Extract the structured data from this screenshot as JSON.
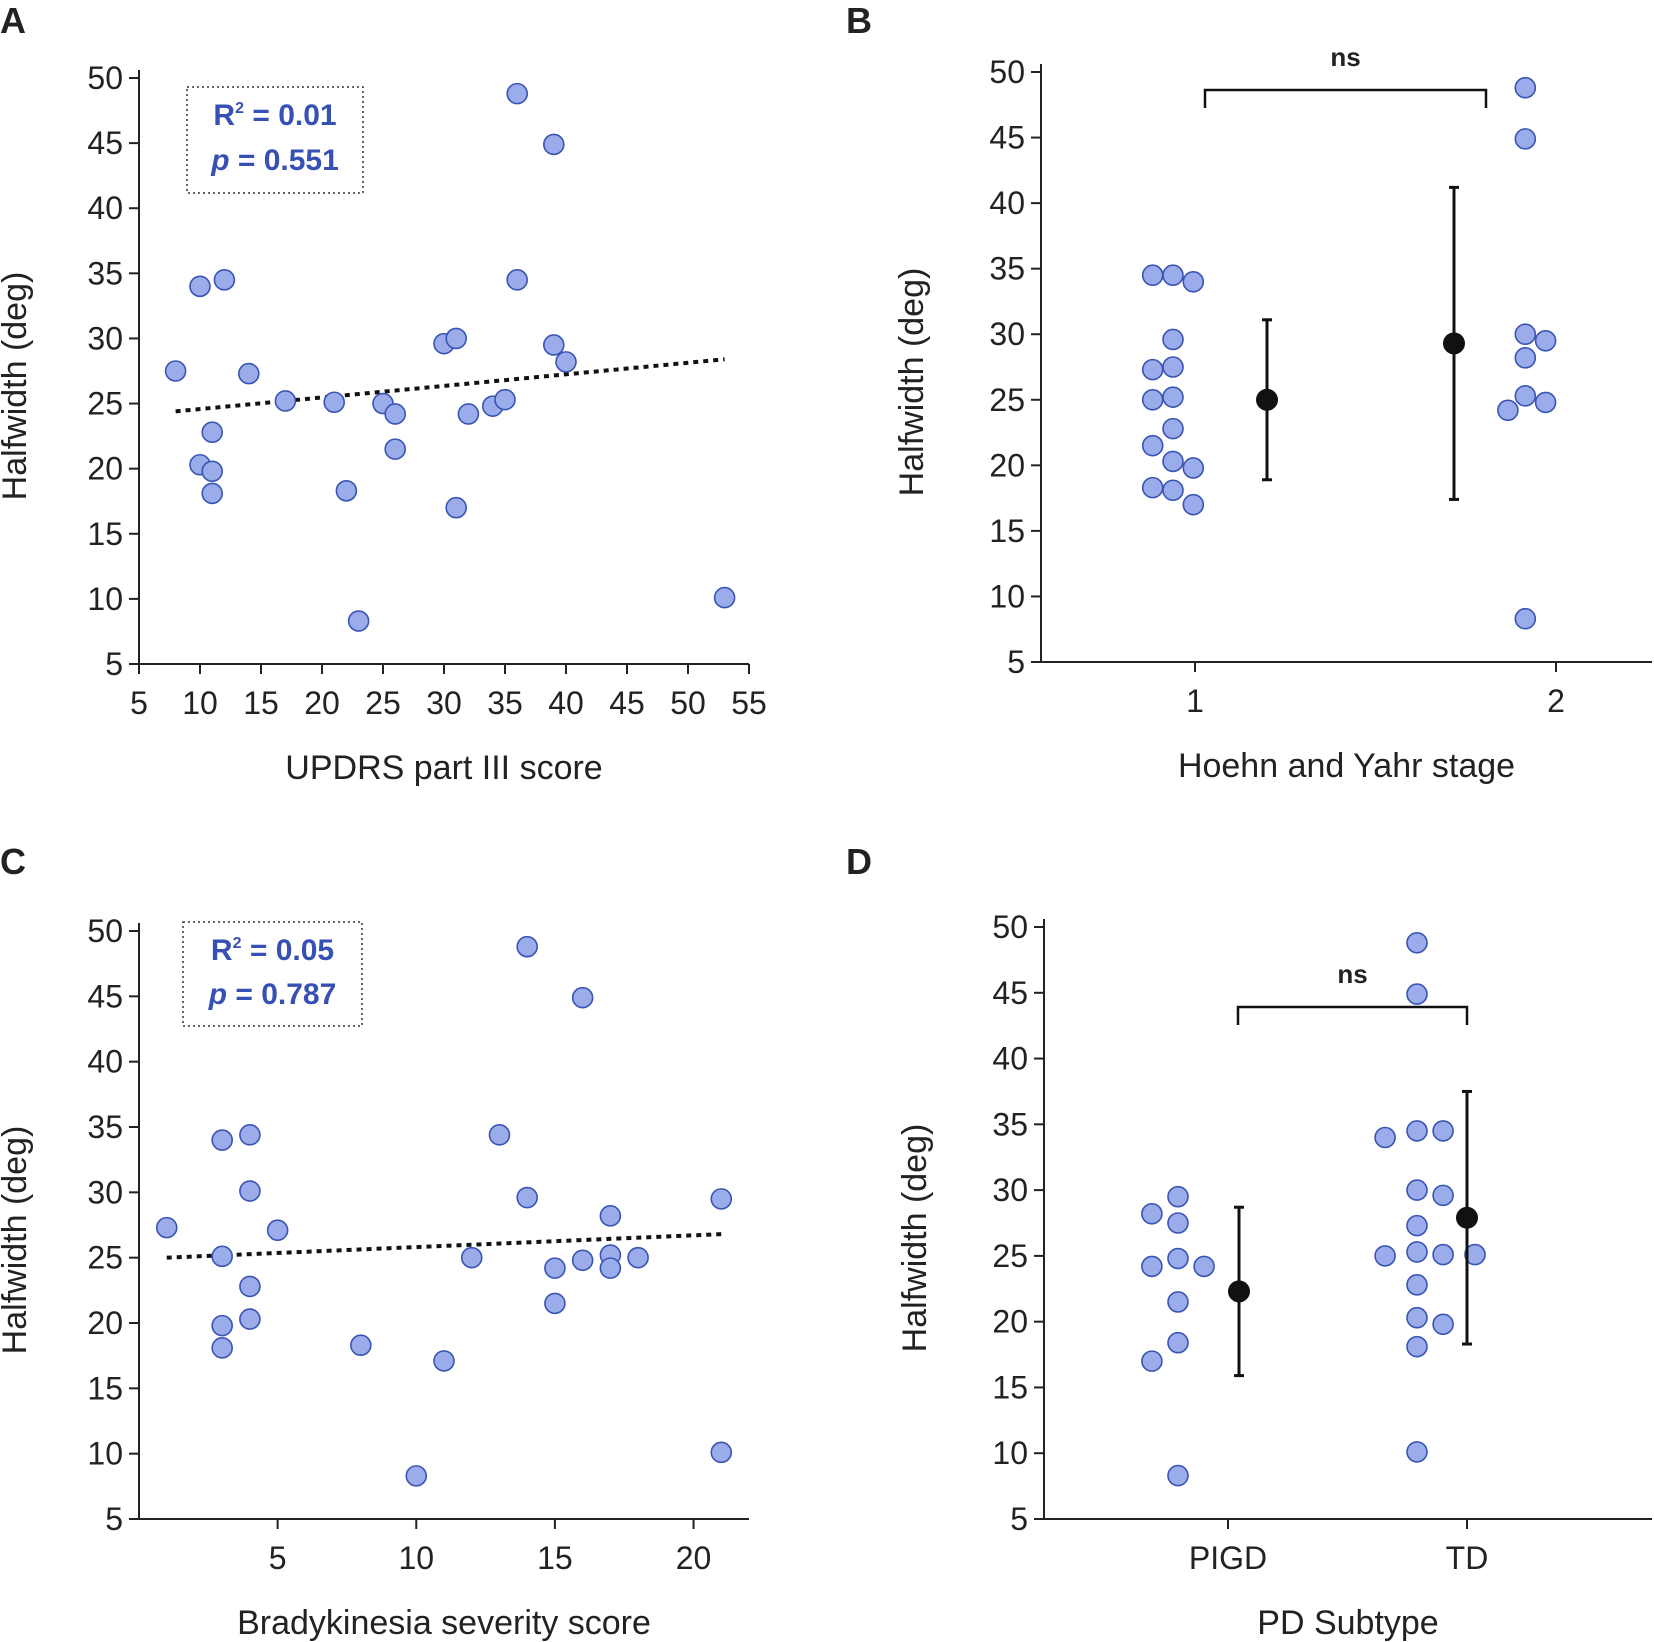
{
  "colors": {
    "point_fill": "#9aacea",
    "point_stroke": "#3a54b4",
    "text_blue": "#3650b3",
    "axis": "#222222"
  },
  "chart_data": [
    {
      "panel": "A",
      "type": "scatter",
      "xlabel": "UPDRS part III score",
      "ylabel": "Halfwidth (deg)",
      "xlim": [
        5,
        55
      ],
      "ylim": [
        5,
        50
      ],
      "xticks": [
        5,
        10,
        15,
        20,
        25,
        30,
        35,
        40,
        45,
        50,
        55
      ],
      "yticks": [
        5,
        10,
        15,
        20,
        25,
        30,
        35,
        40,
        45,
        50
      ],
      "stats": {
        "r2_label": "R",
        "r2_sup": "2",
        "r2_value": "= 0.01",
        "p_label": "p",
        "p_value": "= 0.551"
      },
      "trend": {
        "x": [
          8,
          53
        ],
        "y": [
          24.4,
          28.4
        ]
      },
      "points": [
        [
          8,
          27.5
        ],
        [
          10,
          34
        ],
        [
          10,
          20.3
        ],
        [
          11,
          22.8
        ],
        [
          11,
          19.8
        ],
        [
          11,
          18.1
        ],
        [
          12,
          34.5
        ],
        [
          14,
          27.3
        ],
        [
          17,
          25.2
        ],
        [
          21,
          25.1
        ],
        [
          22,
          18.3
        ],
        [
          23,
          8.3
        ],
        [
          25,
          25
        ],
        [
          26,
          24.2
        ],
        [
          26,
          21.5
        ],
        [
          30,
          29.6
        ],
        [
          31,
          30
        ],
        [
          31,
          17
        ],
        [
          32,
          24.2
        ],
        [
          34,
          24.8
        ],
        [
          35,
          25.3
        ],
        [
          36,
          48.8
        ],
        [
          36,
          34.5
        ],
        [
          39,
          44.9
        ],
        [
          39,
          29.5
        ],
        [
          40,
          28.2
        ],
        [
          53,
          10.1
        ]
      ]
    },
    {
      "panel": "B",
      "type": "strip",
      "xlabel": "Hoehn and Yahr stage",
      "ylabel": "Halfwidth (deg)",
      "ylim": [
        5,
        50
      ],
      "yticks": [
        5,
        10,
        15,
        20,
        25,
        30,
        35,
        40,
        45,
        50
      ],
      "categories": [
        "1",
        "2"
      ],
      "annotation": "ns",
      "groups": [
        {
          "name": "1",
          "points": [
            [
              -0.07,
              34.5
            ],
            [
              0.0,
              34.5
            ],
            [
              0.07,
              34
            ],
            [
              -0.07,
              27.3
            ],
            [
              0.0,
              29.6
            ],
            [
              0.0,
              27.5
            ],
            [
              -0.07,
              25
            ],
            [
              0.0,
              25.2
            ],
            [
              0.0,
              22.8
            ],
            [
              -0.07,
              21.5
            ],
            [
              0.0,
              20.3
            ],
            [
              0.07,
              19.8
            ],
            [
              -0.07,
              18.3
            ],
            [
              0.0,
              18.1
            ],
            [
              0.07,
              17
            ]
          ],
          "mean": 25,
          "lower": 18.9,
          "upper": 31.1
        },
        {
          "name": "2",
          "points": [
            [
              -0.09,
              24.2
            ],
            [
              -0.03,
              48.8
            ],
            [
              -0.03,
              44.9
            ],
            [
              -0.03,
              30
            ],
            [
              -0.03,
              28.2
            ],
            [
              -0.03,
              25.3
            ],
            [
              0.04,
              29.5
            ],
            [
              0.04,
              24.8
            ],
            [
              -0.03,
              8.3
            ]
          ],
          "mean": 29.3,
          "lower": 17.4,
          "upper": 41.2
        }
      ]
    },
    {
      "panel": "C",
      "type": "scatter",
      "xlabel": "Bradykinesia severity score",
      "ylabel": "Halfwidth (deg)",
      "xlim": [
        0,
        22
      ],
      "ylim": [
        5,
        50
      ],
      "xticks": [
        5,
        10,
        15,
        20
      ],
      "yticks": [
        5,
        10,
        15,
        20,
        25,
        30,
        35,
        40,
        45,
        50
      ],
      "stats": {
        "r2_label": "R",
        "r2_sup": "2",
        "r2_value": "= 0.05",
        "p_label": "p",
        "p_value": "= 0.787"
      },
      "trend": {
        "x": [
          1,
          21
        ],
        "y": [
          25,
          26.8
        ]
      },
      "points": [
        [
          1,
          27.3
        ],
        [
          3,
          34
        ],
        [
          3,
          25.1
        ],
        [
          3,
          19.8
        ],
        [
          3,
          18.1
        ],
        [
          4,
          34.4
        ],
        [
          4,
          30.1
        ],
        [
          4,
          22.8
        ],
        [
          4,
          20.3
        ],
        [
          5,
          27.1
        ],
        [
          8,
          18.3
        ],
        [
          10,
          8.3
        ],
        [
          11,
          17.1
        ],
        [
          12,
          25
        ],
        [
          13,
          34.4
        ],
        [
          14,
          48.8
        ],
        [
          14,
          29.6
        ],
        [
          15,
          24.2
        ],
        [
          15,
          21.5
        ],
        [
          16,
          44.9
        ],
        [
          16,
          24.8
        ],
        [
          17,
          28.2
        ],
        [
          17,
          25.2
        ],
        [
          17,
          24.2
        ],
        [
          18,
          25
        ],
        [
          21,
          29.5
        ],
        [
          21,
          10.1
        ]
      ]
    },
    {
      "panel": "D",
      "type": "strip",
      "xlabel": "PD Subtype",
      "ylabel": "Halfwidth (deg)",
      "ylim": [
        5,
        50
      ],
      "yticks": [
        5,
        10,
        15,
        20,
        25,
        30,
        35,
        40,
        45,
        50
      ],
      "categories": [
        "PIGD",
        "TD"
      ],
      "annotation": "ns",
      "groups": [
        {
          "name": "PIGD",
          "points": [
            [
              -0.09,
              28.2
            ],
            [
              0.0,
              29.5
            ],
            [
              0.0,
              27.5
            ],
            [
              -0.09,
              24.2
            ],
            [
              0.0,
              24.8
            ],
            [
              0.09,
              24.2
            ],
            [
              0.0,
              21.5
            ],
            [
              0.0,
              18.4
            ],
            [
              -0.09,
              17
            ],
            [
              0.0,
              8.3
            ]
          ],
          "mean": 22.3,
          "lower": 15.9,
          "upper": 28.7
        },
        {
          "name": "TD",
          "points": [
            [
              -0.11,
              34
            ],
            [
              0.0,
              48.8
            ],
            [
              0.0,
              44.9
            ],
            [
              0.0,
              34.5
            ],
            [
              0.09,
              34.5
            ],
            [
              0.0,
              30
            ],
            [
              0.09,
              29.6
            ],
            [
              0.0,
              27.3
            ],
            [
              -0.11,
              25
            ],
            [
              0.0,
              25.3
            ],
            [
              0.09,
              25.1
            ],
            [
              0.2,
              25.1
            ],
            [
              0.0,
              22.8
            ],
            [
              0.0,
              20.3
            ],
            [
              0.09,
              19.8
            ],
            [
              0.0,
              18.1
            ],
            [
              0.0,
              10.1
            ]
          ],
          "mean": 27.9,
          "lower": 18.3,
          "upper": 37.5
        }
      ]
    }
  ]
}
